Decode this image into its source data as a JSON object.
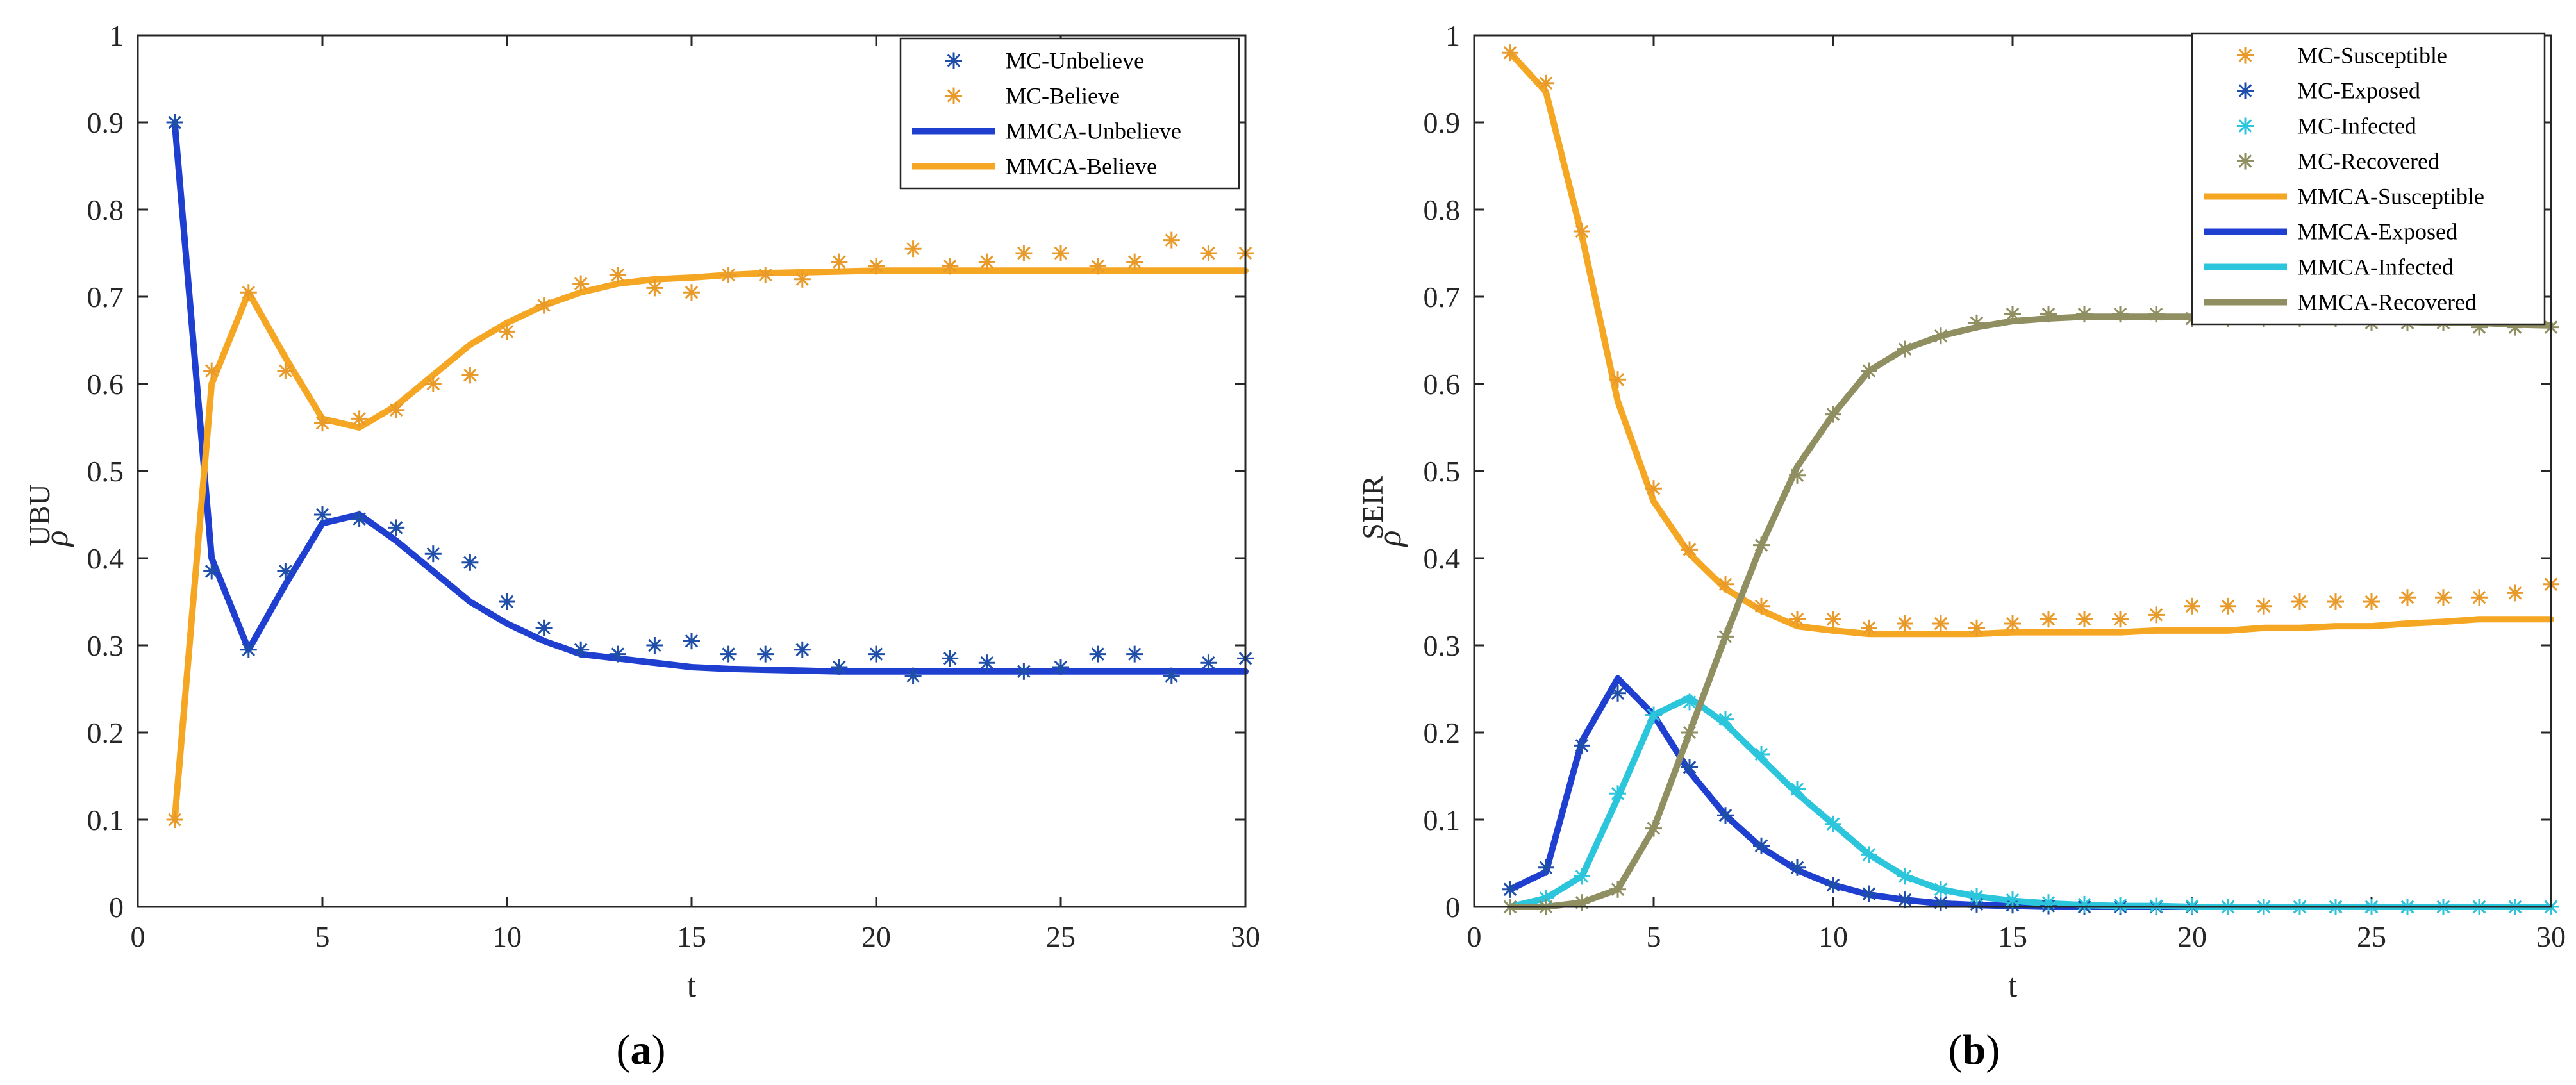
{
  "chart_data": [
    {
      "type": "line",
      "panel_label": "a",
      "xlabel": "t",
      "ylabel_base": "ρ",
      "ylabel_sup": "UBU",
      "xlim": [
        0,
        30
      ],
      "ylim": [
        0,
        1
      ],
      "xticks": [
        "0",
        "5",
        "10",
        "15",
        "20",
        "25",
        "30"
      ],
      "yticks": [
        "0",
        "0.1",
        "0.2",
        "0.3",
        "0.4",
        "0.5",
        "0.6",
        "0.7",
        "0.8",
        "0.9",
        "1"
      ],
      "x": [
        1,
        2,
        3,
        4,
        5,
        6,
        7,
        8,
        9,
        10,
        11,
        12,
        13,
        14,
        15,
        16,
        17,
        18,
        19,
        20,
        21,
        22,
        23,
        24,
        25,
        26,
        27,
        28,
        29,
        30
      ],
      "series": [
        {
          "name": "MC-Unbelieve",
          "kind": "marker",
          "color": "#1f4fa8",
          "values": [
            0.9,
            0.385,
            0.295,
            0.385,
            0.45,
            0.445,
            0.435,
            0.405,
            0.395,
            0.35,
            0.32,
            0.295,
            0.29,
            0.3,
            0.305,
            0.29,
            0.29,
            0.295,
            0.275,
            0.29,
            0.265,
            0.285,
            0.28,
            0.27,
            0.275,
            0.29,
            0.29,
            0.265,
            0.28,
            0.285
          ]
        },
        {
          "name": "MC-Believe",
          "kind": "marker",
          "color": "#e89a2a",
          "values": [
            0.1,
            0.615,
            0.705,
            0.615,
            0.555,
            0.56,
            0.57,
            0.6,
            0.61,
            0.66,
            0.69,
            0.715,
            0.725,
            0.71,
            0.705,
            0.725,
            0.725,
            0.72,
            0.74,
            0.735,
            0.755,
            0.735,
            0.74,
            0.75,
            0.75,
            0.735,
            0.74,
            0.765,
            0.75,
            0.75
          ]
        },
        {
          "name": "MMCA-Unbelieve",
          "kind": "line",
          "color": "#1f3fd0",
          "values": [
            0.9,
            0.4,
            0.295,
            0.37,
            0.44,
            0.45,
            0.42,
            0.385,
            0.35,
            0.325,
            0.305,
            0.29,
            0.285,
            0.28,
            0.275,
            0.273,
            0.272,
            0.271,
            0.27,
            0.27,
            0.27,
            0.27,
            0.27,
            0.27,
            0.27,
            0.27,
            0.27,
            0.27,
            0.27,
            0.27
          ]
        },
        {
          "name": "MMCA-Believe",
          "kind": "line",
          "color": "#f5a623",
          "values": [
            0.1,
            0.6,
            0.705,
            0.63,
            0.56,
            0.55,
            0.575,
            0.61,
            0.645,
            0.67,
            0.69,
            0.705,
            0.715,
            0.72,
            0.722,
            0.725,
            0.727,
            0.728,
            0.729,
            0.73,
            0.73,
            0.73,
            0.73,
            0.73,
            0.73,
            0.73,
            0.73,
            0.73,
            0.73,
            0.73
          ]
        }
      ],
      "legend": [
        "MC-Unbelieve",
        "MC-Believe",
        "MMCA-Unbelieve",
        "MMCA-Believe"
      ]
    },
    {
      "type": "line",
      "panel_label": "b",
      "xlabel": "t",
      "ylabel_base": "ρ",
      "ylabel_sup": "SEIR",
      "xlim": [
        0,
        30
      ],
      "ylim": [
        0,
        1
      ],
      "xticks": [
        "0",
        "5",
        "10",
        "15",
        "20",
        "25",
        "30"
      ],
      "yticks": [
        "0",
        "0.1",
        "0.2",
        "0.3",
        "0.4",
        "0.5",
        "0.6",
        "0.7",
        "0.8",
        "0.9",
        "1"
      ],
      "x": [
        1,
        2,
        3,
        4,
        5,
        6,
        7,
        8,
        9,
        10,
        11,
        12,
        13,
        14,
        15,
        16,
        17,
        18,
        19,
        20,
        21,
        22,
        23,
        24,
        25,
        26,
        27,
        28,
        29,
        30
      ],
      "series": [
        {
          "name": "MC-Susceptible",
          "kind": "marker",
          "color": "#e89a2a",
          "values": [
            0.98,
            0.945,
            0.775,
            0.605,
            0.48,
            0.41,
            0.37,
            0.345,
            0.33,
            0.33,
            0.32,
            0.325,
            0.325,
            0.32,
            0.325,
            0.33,
            0.33,
            0.33,
            0.335,
            0.345,
            0.345,
            0.345,
            0.35,
            0.35,
            0.35,
            0.355,
            0.355,
            0.355,
            0.36,
            0.37
          ]
        },
        {
          "name": "MC-Exposed",
          "kind": "marker",
          "color": "#1f4fa8",
          "values": [
            0.02,
            0.045,
            0.185,
            0.245,
            0.22,
            0.16,
            0.105,
            0.07,
            0.045,
            0.025,
            0.015,
            0.008,
            0.005,
            0.003,
            0.002,
            0.001,
            0.0,
            0.0,
            0.0,
            0.0,
            0.0,
            0.0,
            0.0,
            0.0,
            0.0,
            0.0,
            0.0,
            0.0,
            0.0,
            0.0
          ]
        },
        {
          "name": "MC-Infected",
          "kind": "marker",
          "color": "#2bc5dc",
          "values": [
            0.0,
            0.01,
            0.035,
            0.13,
            0.22,
            0.235,
            0.215,
            0.175,
            0.135,
            0.095,
            0.06,
            0.035,
            0.02,
            0.012,
            0.008,
            0.005,
            0.003,
            0.002,
            0.001,
            0.001,
            0.0,
            0.0,
            0.0,
            0.0,
            0.0,
            0.0,
            0.0,
            0.0,
            0.0,
            0.0
          ]
        },
        {
          "name": "MC-Recovered",
          "kind": "marker",
          "color": "#8f8f62",
          "values": [
            0.0,
            0.0,
            0.005,
            0.02,
            0.09,
            0.2,
            0.31,
            0.415,
            0.495,
            0.565,
            0.615,
            0.64,
            0.655,
            0.67,
            0.68,
            0.68,
            0.68,
            0.68,
            0.68,
            0.675,
            0.675,
            0.675,
            0.675,
            0.675,
            0.67,
            0.67,
            0.67,
            0.665,
            0.665,
            0.665
          ]
        },
        {
          "name": "MMCA-Susceptible",
          "kind": "line",
          "color": "#f5a623",
          "values": [
            0.98,
            0.935,
            0.77,
            0.58,
            0.465,
            0.405,
            0.365,
            0.34,
            0.322,
            0.317,
            0.313,
            0.313,
            0.313,
            0.313,
            0.315,
            0.315,
            0.315,
            0.315,
            0.317,
            0.317,
            0.317,
            0.32,
            0.32,
            0.322,
            0.322,
            0.325,
            0.327,
            0.33,
            0.33,
            0.33
          ]
        },
        {
          "name": "MMCA-Exposed",
          "kind": "line",
          "color": "#1f3fd0",
          "values": [
            0.02,
            0.04,
            0.19,
            0.262,
            0.22,
            0.155,
            0.105,
            0.068,
            0.042,
            0.025,
            0.014,
            0.008,
            0.004,
            0.002,
            0.001,
            0.0,
            0.0,
            0.0,
            0.0,
            0.0,
            0.0,
            0.0,
            0.0,
            0.0,
            0.0,
            0.0,
            0.0,
            0.0,
            0.0,
            0.0
          ]
        },
        {
          "name": "MMCA-Infected",
          "kind": "line",
          "color": "#2bc5dc",
          "values": [
            0.0,
            0.01,
            0.035,
            0.125,
            0.22,
            0.24,
            0.21,
            0.17,
            0.13,
            0.095,
            0.06,
            0.035,
            0.02,
            0.012,
            0.007,
            0.004,
            0.002,
            0.001,
            0.001,
            0.0,
            0.0,
            0.0,
            0.0,
            0.0,
            0.0,
            0.0,
            0.0,
            0.0,
            0.0,
            0.0
          ]
        },
        {
          "name": "MMCA-Recovered",
          "kind": "line",
          "color": "#8f8f62",
          "values": [
            0.0,
            0.0,
            0.005,
            0.02,
            0.09,
            0.2,
            0.31,
            0.415,
            0.505,
            0.565,
            0.615,
            0.64,
            0.655,
            0.665,
            0.672,
            0.675,
            0.677,
            0.677,
            0.677,
            0.677,
            0.675,
            0.675,
            0.674,
            0.673,
            0.672,
            0.671,
            0.67,
            0.67,
            0.668,
            0.667
          ]
        }
      ],
      "legend": [
        "MC-Susceptible",
        "MC-Exposed",
        "MC-Infected",
        "MC-Recovered",
        "MMCA-Susceptible",
        "MMCA-Exposed",
        "MMCA-Infected",
        "MMCA-Recovered"
      ]
    }
  ]
}
